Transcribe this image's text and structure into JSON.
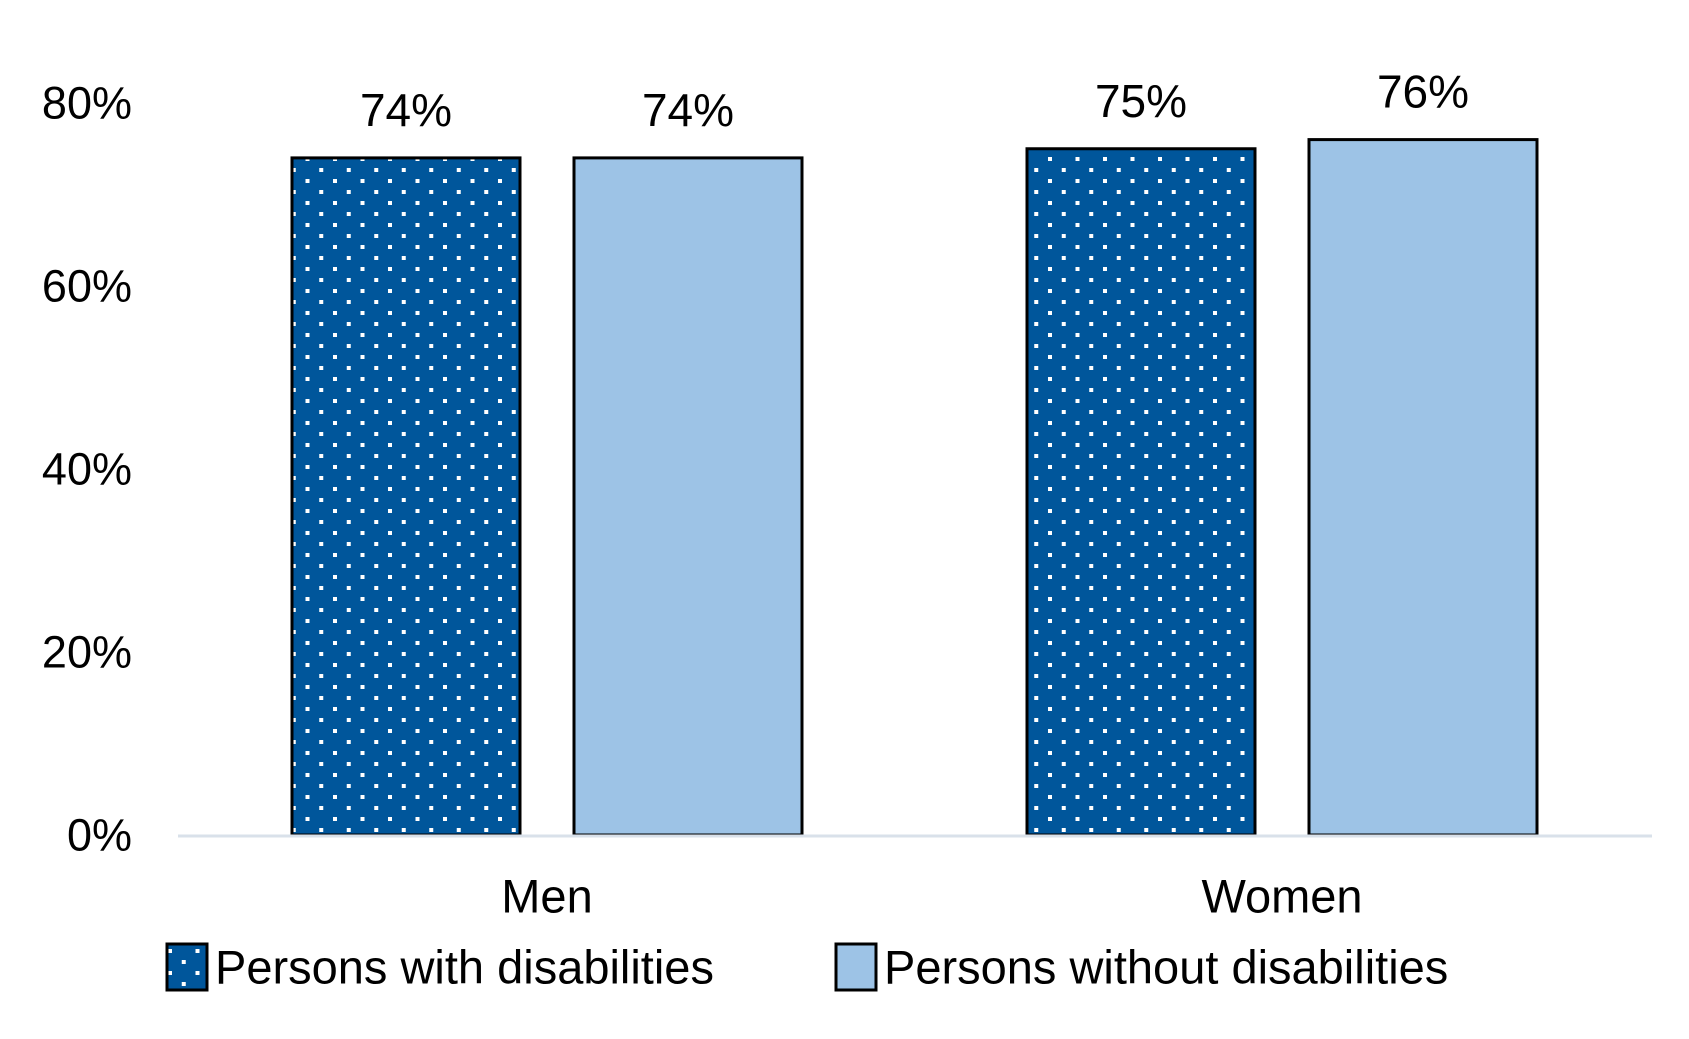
{
  "chart_data": {
    "type": "bar",
    "title": "",
    "xlabel": "",
    "ylabel": "",
    "categories": [
      "Men",
      "Women"
    ],
    "series": [
      {
        "name": "Persons with disabilities",
        "values": [
          74,
          75
        ],
        "labels": [
          "74%",
          "75%"
        ],
        "color": "#00569B",
        "pattern": "dotted",
        "pattern_color": "#FFFFFF"
      },
      {
        "name": "Persons without disabilities",
        "values": [
          74,
          76
        ],
        "labels": [
          "74%",
          "76%"
        ],
        "color": "#9DC3E6",
        "pattern": "solid"
      }
    ],
    "ylim": [
      0,
      80
    ],
    "yticks": [
      0,
      20,
      40,
      60,
      80
    ],
    "ytick_labels": [
      "0%",
      "20%",
      "40%",
      "60%",
      "80%"
    ],
    "grid": false,
    "axis_color": "#D9E1EA",
    "bar_outline_color": "#000000",
    "legend_position": "bottom",
    "data_labels": true
  }
}
